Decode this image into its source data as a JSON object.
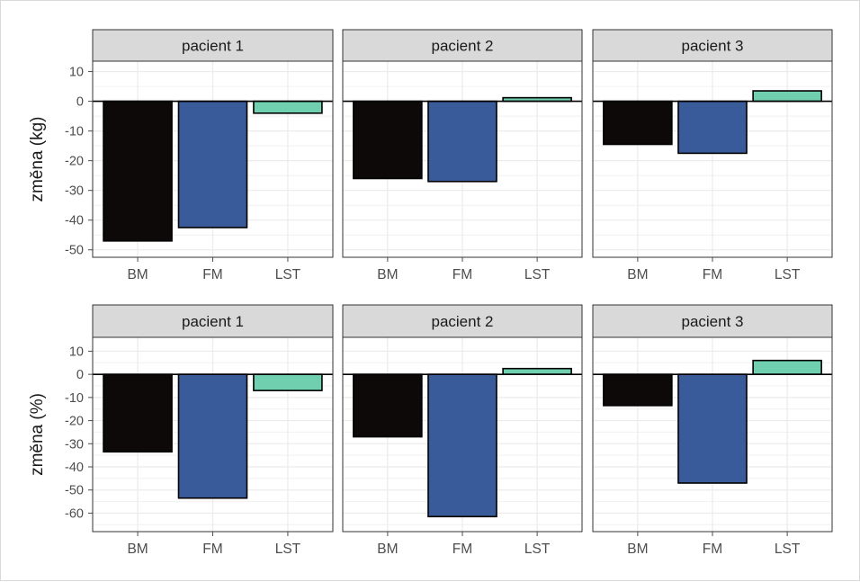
{
  "chart_data": [
    {
      "type": "bar",
      "ylabel": "změna (kg)",
      "categories": [
        "BM",
        "FM",
        "LST"
      ],
      "ylim": [
        -52.5,
        13.5
      ],
      "yticks": [
        10,
        0,
        -10,
        -20,
        -30,
        -40,
        -50
      ],
      "grid": true,
      "colors": {
        "BM": "#0d0908",
        "FM": "#3a5b9a",
        "LST": "#6fcfae"
      },
      "panels": [
        {
          "title": "pacient 1",
          "values": [
            -47,
            -42.5,
            -4
          ]
        },
        {
          "title": "pacient 2",
          "values": [
            -26,
            -27,
            1.2
          ]
        },
        {
          "title": "pacient 3",
          "values": [
            -14.5,
            -17.5,
            3.5
          ]
        }
      ]
    },
    {
      "type": "bar",
      "ylabel": "změna (%)",
      "categories": [
        "BM",
        "FM",
        "LST"
      ],
      "ylim": [
        -68,
        16
      ],
      "yticks": [
        10,
        0,
        -10,
        -20,
        -30,
        -40,
        -50,
        -60
      ],
      "grid": true,
      "colors": {
        "BM": "#0d0908",
        "FM": "#3a5b9a",
        "LST": "#6fcfae"
      },
      "panels": [
        {
          "title": "pacient 1",
          "values": [
            -33.5,
            -53.5,
            -7
          ]
        },
        {
          "title": "pacient 2",
          "values": [
            -27,
            -61.5,
            2.5
          ]
        },
        {
          "title": "pacient 3",
          "values": [
            -13.5,
            -47,
            6
          ]
        }
      ]
    }
  ]
}
